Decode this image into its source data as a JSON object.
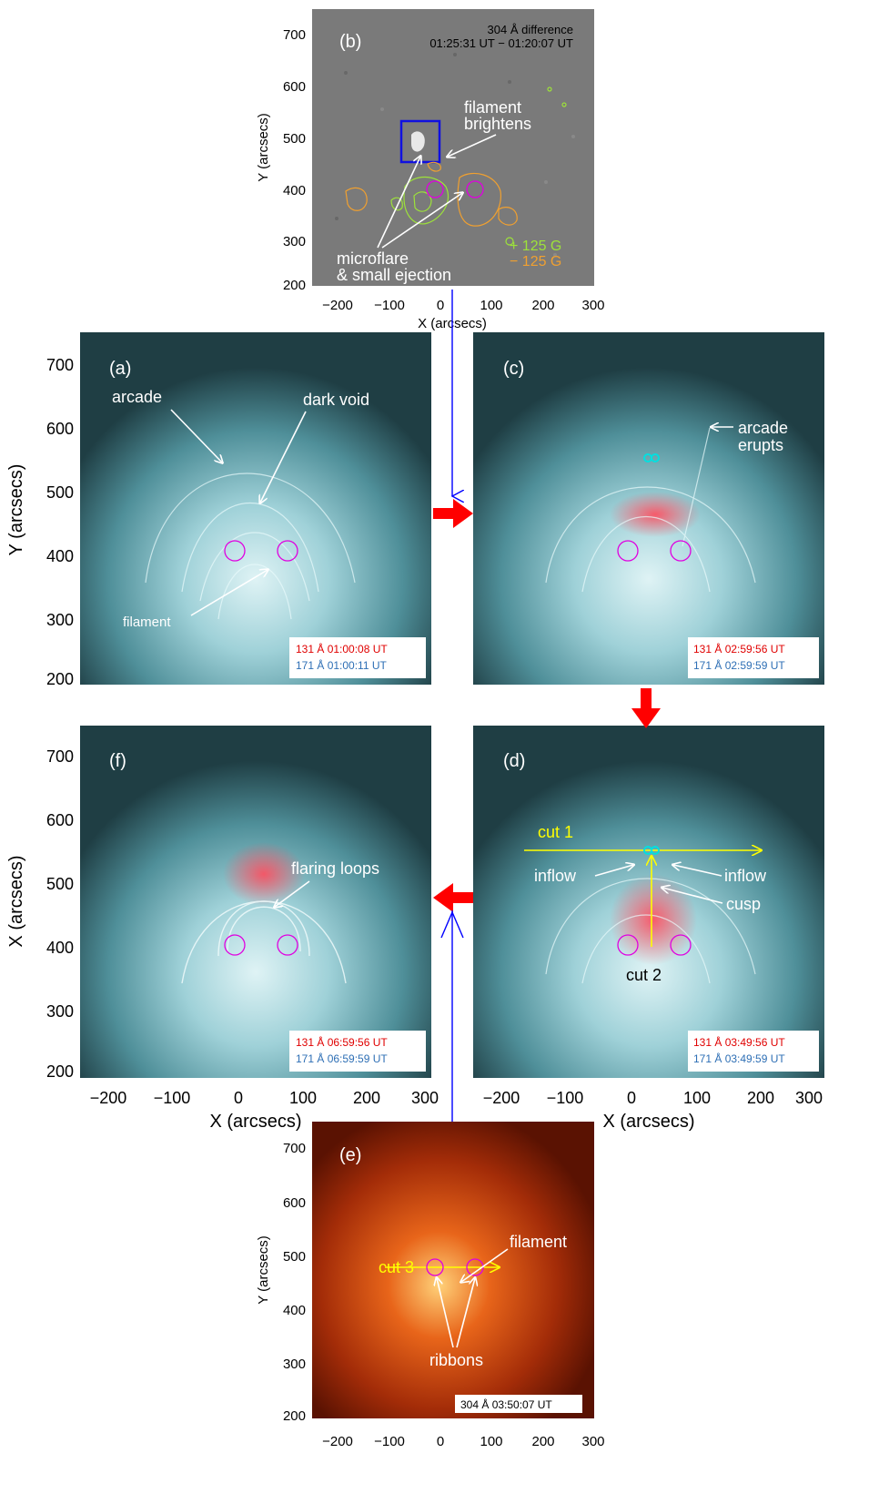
{
  "panels": {
    "b": {
      "label": "(b)",
      "header_line1": "304 Å difference",
      "header_line2": "01:25:31 UT − 01:20:07 UT",
      "annotations": [
        "filament",
        "brightens",
        "microflare",
        "& small ejection"
      ],
      "legend_pos": "+ 125 G",
      "legend_neg": "− 125 G",
      "ylabel": "Y (arcsecs)",
      "xlabel": "X (arcsecs)"
    },
    "a": {
      "label": "(a)",
      "annotations": [
        "arcade",
        "dark void",
        "filament"
      ],
      "ts131": "131 Å 01:00:08 UT",
      "ts171": "171 Å 01:00:11 UT",
      "ylabel": "Y (arcsecs)"
    },
    "c": {
      "label": "(c)",
      "annotations": [
        "arcade",
        "erupts"
      ],
      "ts131": "131 Å 02:59:56 UT",
      "ts171": "171 Å 02:59:59 UT"
    },
    "f": {
      "label": "(f)",
      "annotations": [
        "flaring loops"
      ],
      "ts131": "131 Å 06:59:56 UT",
      "ts171": "171 Å 06:59:59 UT",
      "ylabel": "X (arcsecs)",
      "xlabel": "X (arcsecs)"
    },
    "d": {
      "label": "(d)",
      "annotations": [
        "cut 1",
        "inflow",
        "inflow",
        "cusp",
        "cut 2"
      ],
      "ts131": "131 Å 03:49:56 UT",
      "ts171": "171 Å 03:49:59 UT",
      "xlabel": "X (arcsecs)"
    },
    "e": {
      "label": "(e)",
      "annotations": [
        "filament",
        "cut 3",
        "ribbons"
      ],
      "ts304": "304 Å 03:50:07 UT",
      "ylabel": "Y (arcsecs)"
    }
  },
  "axes": {
    "x_ticks": [
      "−200",
      "−100",
      "0",
      "100",
      "200",
      "300"
    ],
    "y_ticks": [
      "700",
      "600",
      "500",
      "400",
      "300",
      "200"
    ]
  },
  "colors": {
    "cyan_bg": "#4a8c97",
    "diff_gray": "#7a7a7a",
    "orange_304": "#a32c08",
    "flow_arrow": "#ff0000",
    "link_line": "#0000ff",
    "circle": "#e000e0",
    "cut": "#ffff00"
  }
}
